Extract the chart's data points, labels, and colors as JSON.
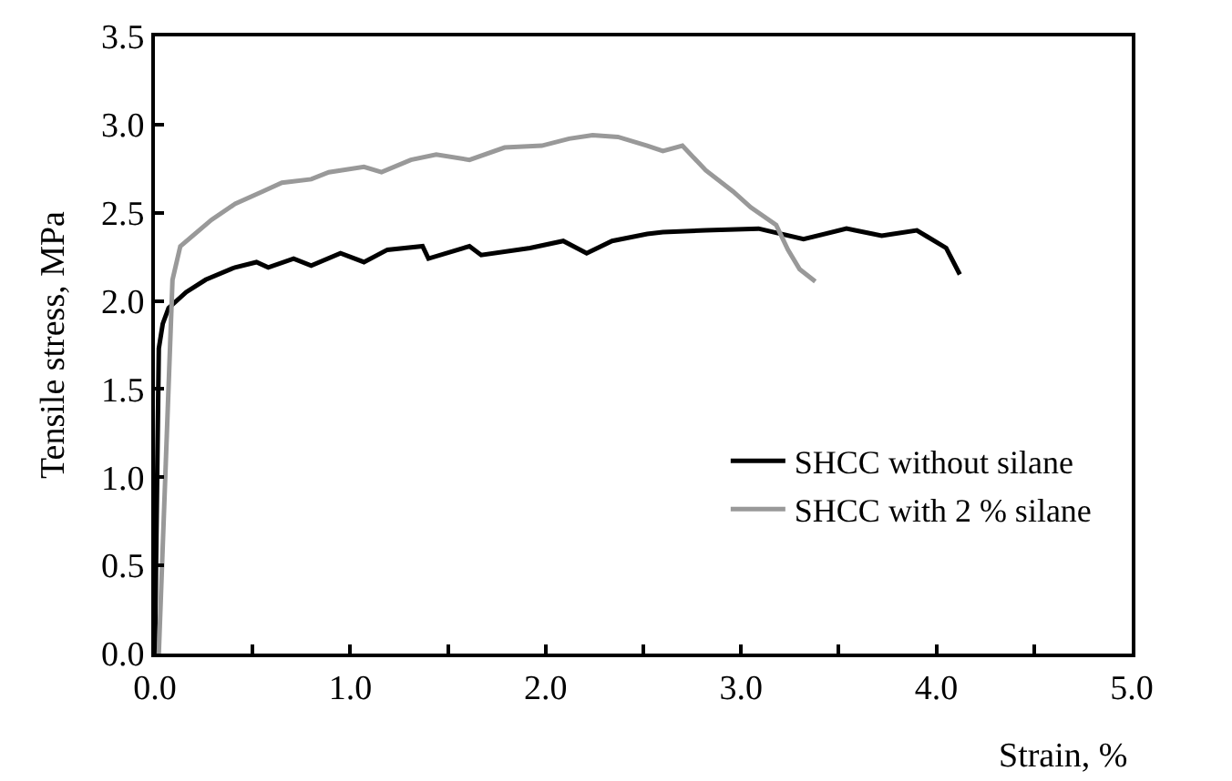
{
  "chart_data": {
    "type": "line",
    "xlabel": "Strain, %",
    "ylabel": "Tensile stress, MPa",
    "xlim": [
      0,
      5
    ],
    "ylim": [
      0,
      3.5
    ],
    "xticks": [
      {
        "value": 0,
        "label": "0.0"
      },
      {
        "value": 0.5,
        "label": null
      },
      {
        "value": 1,
        "label": "1.0"
      },
      {
        "value": 1.5,
        "label": null
      },
      {
        "value": 2,
        "label": "2.0"
      },
      {
        "value": 2.5,
        "label": null
      },
      {
        "value": 3,
        "label": "3.0"
      },
      {
        "value": 3.5,
        "label": null
      },
      {
        "value": 4,
        "label": "4.0"
      },
      {
        "value": 4.5,
        "label": null
      },
      {
        "value": 5,
        "label": "5.0"
      }
    ],
    "yticks": [
      {
        "value": 0,
        "label": "0.0"
      },
      0.5,
      {
        "value": 1,
        "label": "1.0"
      },
      1.5,
      {
        "value": 2,
        "label": "2.0"
      },
      2.5,
      {
        "value": 3,
        "label": "3.0"
      },
      3.5
    ],
    "legend": "bottom right",
    "marker": "none",
    "line_style": "solid",
    "series": [
      {
        "name": "SHCC without silane",
        "color": "#000000",
        "x": [
          0,
          0.02,
          0.04,
          0.07,
          0.16,
          0.26,
          0.41,
          0.52,
          0.58,
          0.71,
          0.8,
          0.95,
          1.07,
          1.19,
          1.37,
          1.4,
          1.61,
          1.67,
          1.92,
          2.09,
          2.21,
          2.34,
          2.52,
          2.6,
          2.82,
          3.09,
          3.32,
          3.54,
          3.72,
          3.9,
          4.05,
          4.12
        ],
        "values": [
          0,
          1.73,
          1.87,
          1.96,
          2.05,
          2.12,
          2.19,
          2.22,
          2.19,
          2.24,
          2.2,
          2.27,
          2.22,
          2.29,
          2.31,
          2.24,
          2.31,
          2.26,
          2.3,
          2.34,
          2.27,
          2.34,
          2.38,
          2.39,
          2.4,
          2.41,
          2.35,
          2.41,
          2.37,
          2.4,
          2.3,
          2.15
        ]
      },
      {
        "name": "SHCC with 2 % silane",
        "color": "#999999",
        "x": [
          0.02,
          0.09,
          0.13,
          0.29,
          0.41,
          0.55,
          0.65,
          0.8,
          0.89,
          1.07,
          1.16,
          1.31,
          1.44,
          1.61,
          1.79,
          1.98,
          2.12,
          2.24,
          2.37,
          2.52,
          2.6,
          2.7,
          2.82,
          2.96,
          3.05,
          3.18,
          3.24,
          3.3,
          3.38
        ],
        "values": [
          0,
          2.12,
          2.31,
          2.46,
          2.55,
          2.62,
          2.67,
          2.69,
          2.73,
          2.76,
          2.73,
          2.8,
          2.83,
          2.8,
          2.87,
          2.88,
          2.92,
          2.94,
          2.93,
          2.88,
          2.85,
          2.88,
          2.74,
          2.62,
          2.53,
          2.43,
          2.29,
          2.18,
          2.11
        ]
      }
    ]
  }
}
